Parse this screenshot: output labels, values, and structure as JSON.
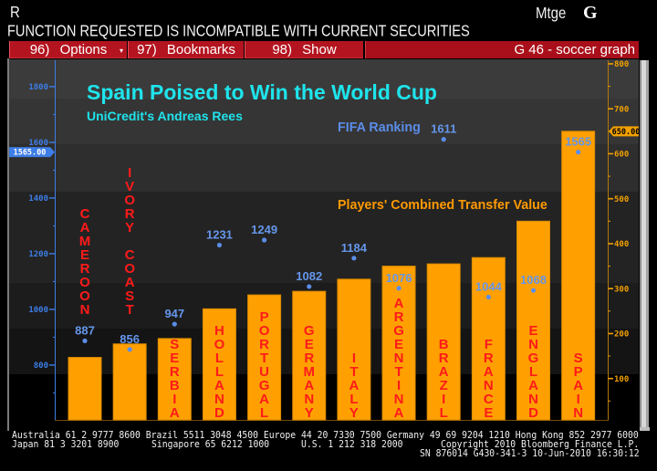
{
  "top_bar": {
    "security": "R",
    "market_sector": "Mtge",
    "function_key": "G"
  },
  "error_message": "FUNCTION REQUESTED IS INCOMPATIBLE WITH CURRENT SECURITIES",
  "menu": {
    "items": [
      {
        "label": "96) Options",
        "icon": "dropdown-arrow-icon"
      },
      {
        "label": "97) Bookmarks"
      },
      {
        "label": "98) Show"
      }
    ],
    "page_title": "G 46 - soccer graph"
  },
  "chart_data": {
    "type": "bar",
    "title": "Spain Poised to Win the World Cup",
    "subtitle": "UniCredit's Andreas Rees",
    "xlabel": "",
    "ylabel": "",
    "categories": [
      "CAMEROON",
      "IVORY COAST",
      "SERBIA",
      "HOLLAND",
      "PORTUGAL",
      "GERMANY",
      "ITALY",
      "ARGENTINA",
      "BRAZIL",
      "FRANCE",
      "ENGLAND",
      "SPAIN"
    ],
    "category_label_placement": [
      "above",
      "above",
      "inside",
      "inside",
      "inside",
      "inside",
      "inside",
      "inside",
      "inside",
      "inside",
      "inside",
      "inside"
    ],
    "series": [
      {
        "name": "Players' Combined Transfer Value",
        "type": "bar",
        "axis": "right",
        "color": "#ffa000",
        "values": [
          147,
          177,
          189,
          255,
          286,
          294,
          321,
          350,
          355,
          369,
          450,
          650
        ]
      },
      {
        "name": "FIFA Ranking",
        "type": "scatter",
        "axis": "left",
        "color": "#5b8de8",
        "label_color": "#6596ea",
        "values": [
          887,
          856,
          947,
          1231,
          1249,
          1082,
          1184,
          1076,
          1611,
          1044,
          1068,
          1565
        ]
      }
    ],
    "left_axis": {
      "ylim": [
        603,
        1895
      ],
      "ticks": [
        800,
        1000,
        1200,
        1400,
        1600,
        1800
      ],
      "minor_step": 100,
      "last_value_tag": "1565.00",
      "color": "#3d7de6"
    },
    "right_axis": {
      "ylim": [
        8,
        808
      ],
      "ticks": [
        100,
        200,
        300,
        400,
        500,
        600,
        700,
        800
      ],
      "minor_step": 50,
      "last_value_tag": "650.00",
      "color": "#f0a000"
    },
    "legend": [
      {
        "label": "FIFA Ranking",
        "color": "#5b8de8",
        "placement": "top-center"
      },
      {
        "label": "Players' Combined Transfer Value",
        "color": "#ff9a00",
        "placement": "center-right"
      }
    ],
    "grid": false
  },
  "colors": {
    "title": "#1ee4ec",
    "category_label": "#ff1a1a",
    "menu_bg": "#b3141f",
    "background": "#000000"
  },
  "footer": {
    "line1": "Australia 61 2 9777 8600 Brazil 5511 3048 4500 Europe 44 20 7330 7500 Germany 49 69 9204 1210 Hong Kong 852 2977 6000",
    "line2": {
      "japan": "Japan 81 3 3201 8900",
      "singapore": "Singapore 65 6212 1000",
      "us": "U.S. 1 212 318 2000",
      "copyright": "Copyright 2010 Bloomberg Finance L.P."
    },
    "line3": "SN 876014 G430-341-3 10-Jun-2010 16:30:12"
  }
}
